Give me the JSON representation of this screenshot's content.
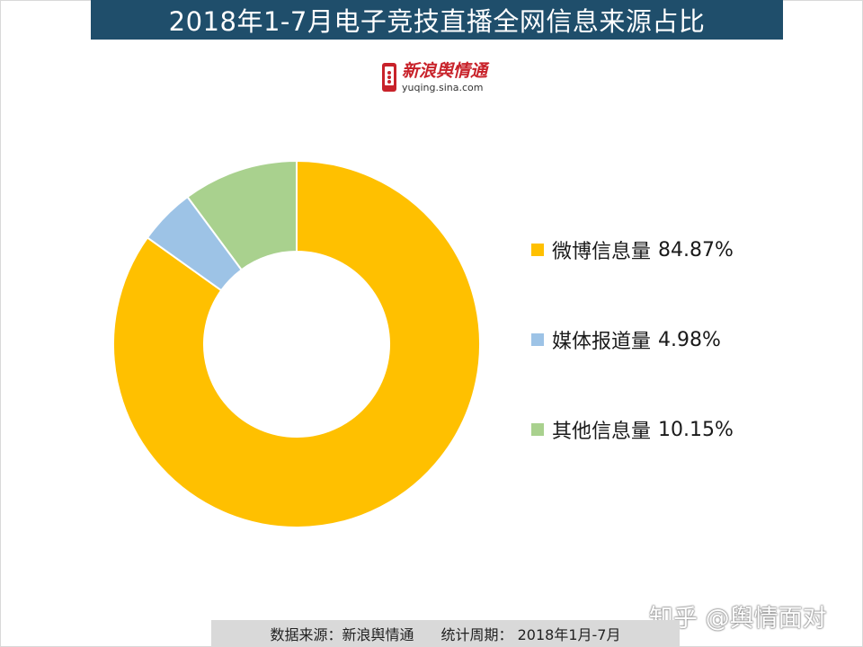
{
  "title": "2018年1-7月电子竞技直播全网信息来源占比",
  "logo": {
    "name_cn": "新浪舆情通",
    "domain_text": "yuqing.sina.com"
  },
  "chart_data": {
    "type": "pie",
    "variant": "donut",
    "title": "2018年1-7月电子竞技直播全网信息来源占比",
    "legend_position": "right",
    "categories": [
      "微博信息量",
      "媒体报道量",
      "其他信息量"
    ],
    "values": [
      84.87,
      4.98,
      10.15
    ],
    "value_labels": [
      "84.87%",
      "4.98%",
      "10.15%"
    ],
    "colors": [
      "#ffc000",
      "#9dc3e6",
      "#a9d18e"
    ],
    "start_angle_deg": 0,
    "direction": "clockwise"
  },
  "watermark": "知乎 @舆情面对",
  "footer": {
    "source": "数据来源：新浪舆情通",
    "period": "统计周期： 2018年1月-7月"
  }
}
